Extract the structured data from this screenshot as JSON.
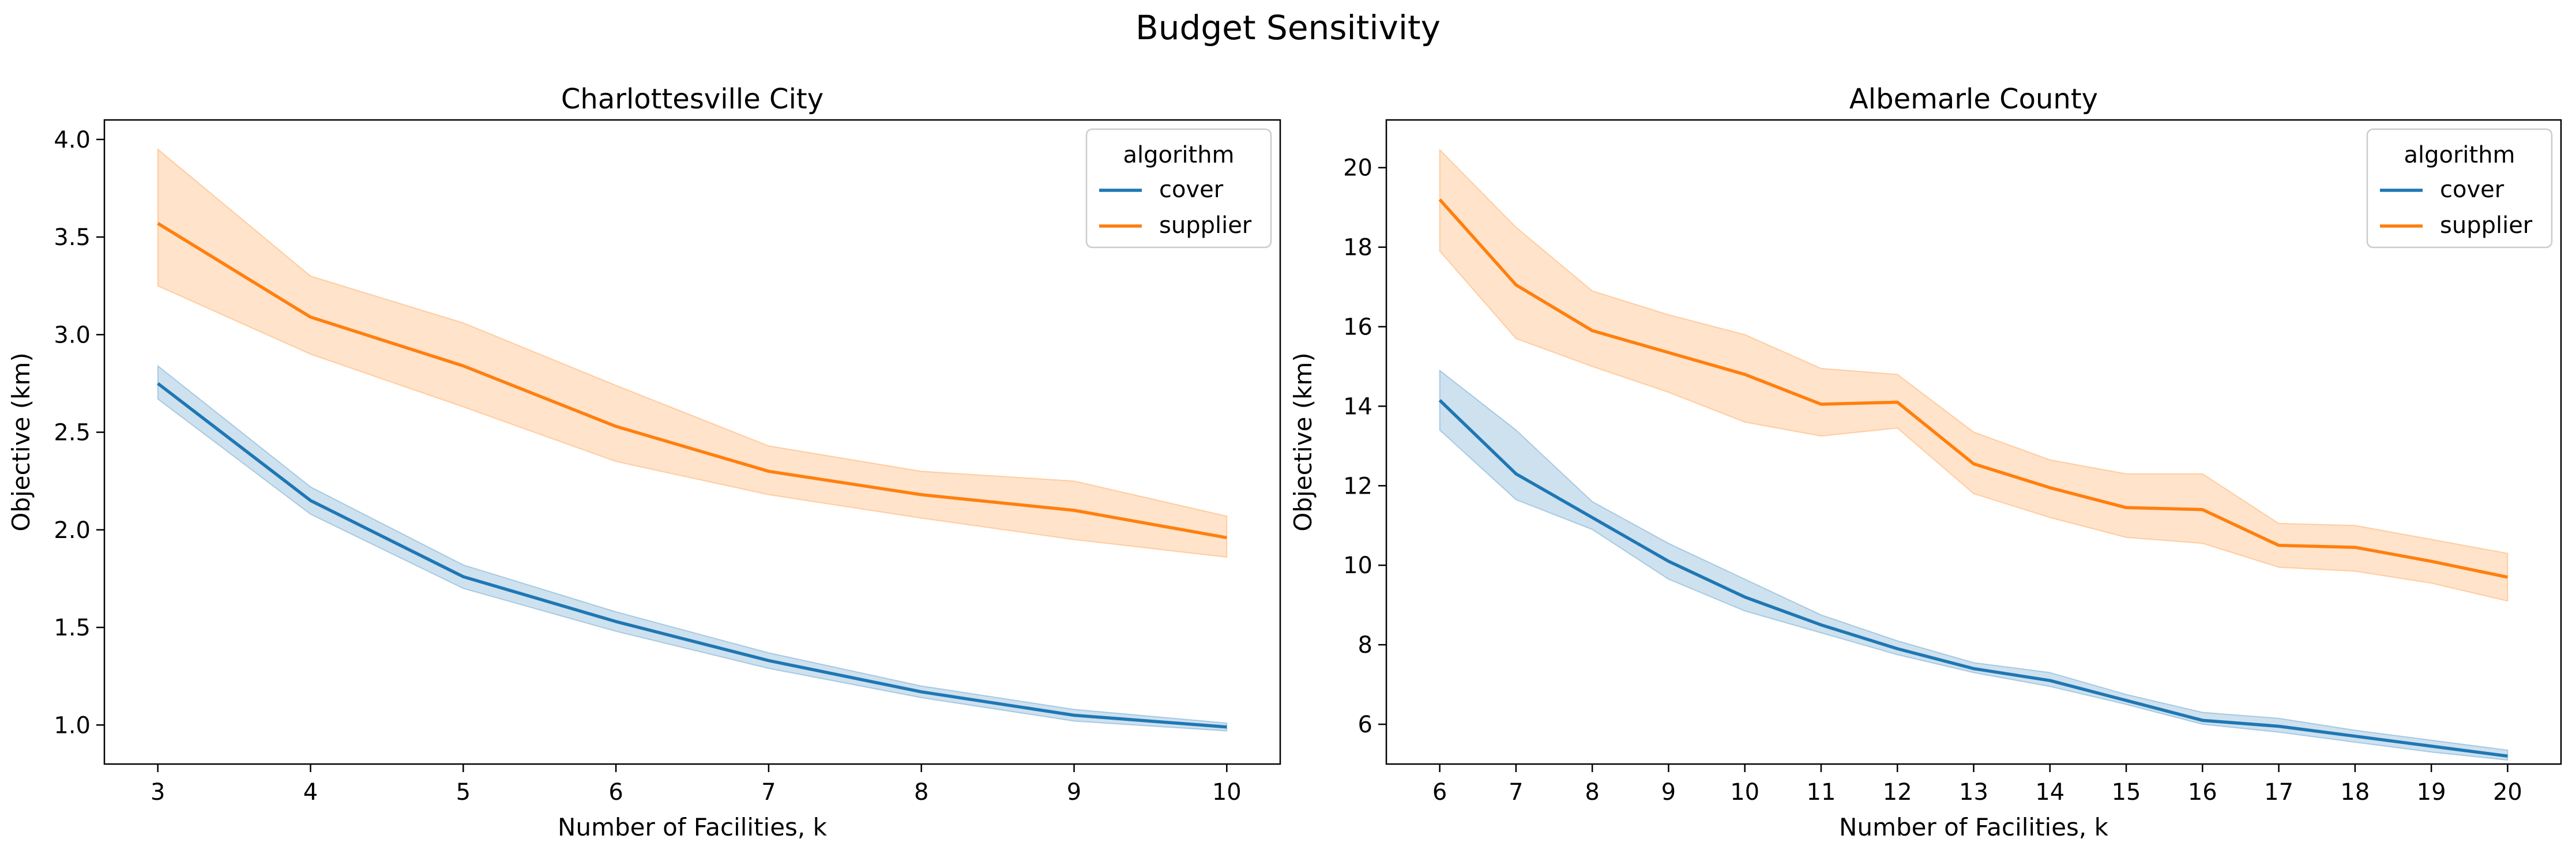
{
  "suptitle": "Budget Sensitivity",
  "colors": {
    "cover": "#1f77b4",
    "supplier": "#ff7f0e"
  },
  "legend_title": "algorithm",
  "chart_data": [
    {
      "type": "line",
      "title": "Charlottesville City",
      "xlabel": "Number of Facilities, k",
      "ylabel": "Objective (km)",
      "x": [
        3,
        4,
        5,
        6,
        7,
        8,
        9,
        10
      ],
      "xlim": [
        2.65,
        10.35
      ],
      "ylim": [
        0.8,
        4.1
      ],
      "xticks": [
        3,
        4,
        5,
        6,
        7,
        8,
        9,
        10
      ],
      "yticks": [
        1.0,
        1.5,
        2.0,
        2.5,
        3.0,
        3.5,
        4.0
      ],
      "ytick_labels": [
        "1.0",
        "1.5",
        "2.0",
        "2.5",
        "3.0",
        "3.5",
        "4.0"
      ],
      "legend_position": "upper right",
      "series": [
        {
          "name": "cover",
          "color": "#1f77b4",
          "values": [
            2.75,
            2.15,
            1.76,
            1.53,
            1.33,
            1.17,
            1.05,
            0.99
          ],
          "lower": [
            2.67,
            2.08,
            1.7,
            1.48,
            1.29,
            1.14,
            1.02,
            0.97
          ],
          "upper": [
            2.84,
            2.22,
            1.82,
            1.58,
            1.37,
            1.2,
            1.08,
            1.01
          ]
        },
        {
          "name": "supplier",
          "color": "#ff7f0e",
          "values": [
            3.57,
            3.09,
            2.84,
            2.53,
            2.3,
            2.18,
            2.1,
            1.96
          ],
          "lower": [
            3.25,
            2.9,
            2.63,
            2.35,
            2.18,
            2.06,
            1.95,
            1.86
          ],
          "upper": [
            3.95,
            3.3,
            3.06,
            2.74,
            2.43,
            2.3,
            2.25,
            2.07
          ]
        }
      ]
    },
    {
      "type": "line",
      "title": "Albemarle County",
      "xlabel": "Number of Facilities, k",
      "ylabel": "Objective (km)",
      "x": [
        6,
        7,
        8,
        9,
        10,
        11,
        12,
        13,
        14,
        15,
        16,
        17,
        18,
        19,
        20
      ],
      "xlim": [
        5.3,
        20.7
      ],
      "ylim": [
        5.0,
        21.2
      ],
      "xticks": [
        6,
        7,
        8,
        9,
        10,
        11,
        12,
        13,
        14,
        15,
        16,
        17,
        18,
        19,
        20
      ],
      "yticks": [
        6,
        8,
        10,
        12,
        14,
        16,
        18,
        20
      ],
      "ytick_labels": [
        "6",
        "8",
        "10",
        "12",
        "14",
        "16",
        "18",
        "20"
      ],
      "legend_position": "upper right",
      "series": [
        {
          "name": "cover",
          "color": "#1f77b4",
          "values": [
            14.15,
            12.3,
            11.2,
            10.1,
            9.2,
            8.5,
            7.9,
            7.4,
            7.1,
            6.6,
            6.1,
            5.95,
            5.7,
            5.45,
            5.2
          ],
          "lower": [
            13.4,
            11.65,
            10.9,
            9.65,
            8.85,
            8.3,
            7.75,
            7.3,
            6.95,
            6.5,
            6.0,
            5.8,
            5.55,
            5.3,
            5.1
          ],
          "upper": [
            14.9,
            13.4,
            11.6,
            10.55,
            9.65,
            8.75,
            8.1,
            7.55,
            7.3,
            6.75,
            6.3,
            6.15,
            5.85,
            5.6,
            5.35
          ]
        },
        {
          "name": "supplier",
          "color": "#ff7f0e",
          "values": [
            19.2,
            17.05,
            15.9,
            15.35,
            14.8,
            14.05,
            14.1,
            12.55,
            11.95,
            11.45,
            11.4,
            10.5,
            10.45,
            10.1,
            9.7
          ],
          "lower": [
            17.9,
            15.7,
            15.0,
            14.35,
            13.6,
            13.25,
            13.45,
            11.8,
            11.2,
            10.7,
            10.55,
            9.95,
            9.85,
            9.55,
            9.1
          ],
          "upper": [
            20.45,
            18.5,
            16.9,
            16.3,
            15.8,
            14.95,
            14.8,
            13.35,
            12.65,
            12.3,
            12.3,
            11.05,
            11.0,
            10.65,
            10.3
          ]
        }
      ]
    }
  ]
}
